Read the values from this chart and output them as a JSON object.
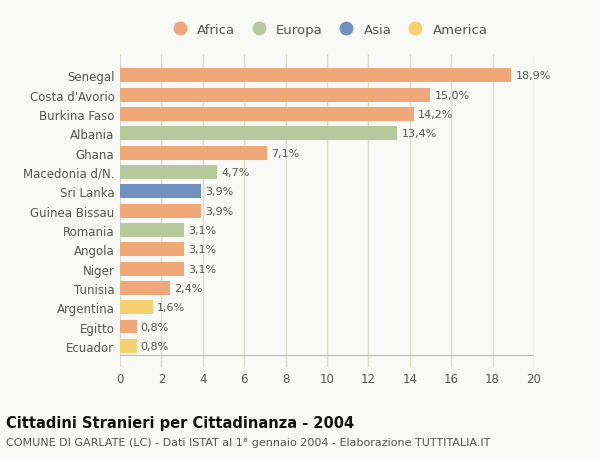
{
  "categories": [
    "Senegal",
    "Costa d'Avorio",
    "Burkina Faso",
    "Albania",
    "Ghana",
    "Macedonia d/N.",
    "Sri Lanka",
    "Guinea Bissau",
    "Romania",
    "Angola",
    "Niger",
    "Tunisia",
    "Argentina",
    "Egitto",
    "Ecuador"
  ],
  "values": [
    18.9,
    15.0,
    14.2,
    13.4,
    7.1,
    4.7,
    3.9,
    3.9,
    3.1,
    3.1,
    3.1,
    2.4,
    1.6,
    0.8,
    0.8
  ],
  "labels": [
    "18,9%",
    "15,0%",
    "14,2%",
    "13,4%",
    "7,1%",
    "4,7%",
    "3,9%",
    "3,9%",
    "3,1%",
    "3,1%",
    "3,1%",
    "2,4%",
    "1,6%",
    "0,8%",
    "0,8%"
  ],
  "continents": [
    "Africa",
    "Africa",
    "Africa",
    "Europa",
    "Africa",
    "Europa",
    "Asia",
    "Africa",
    "Europa",
    "Africa",
    "Africa",
    "Africa",
    "America",
    "Africa",
    "America"
  ],
  "colors": {
    "Africa": "#F0A878",
    "Europa": "#B5C99A",
    "Asia": "#7090C0",
    "America": "#F5D06E"
  },
  "legend_order": [
    "Africa",
    "Europa",
    "Asia",
    "America"
  ],
  "legend_colors": [
    "#F0A878",
    "#B5C99A",
    "#7090C0",
    "#F5D06E"
  ],
  "xlim": [
    0,
    20
  ],
  "xticks": [
    0,
    2,
    4,
    6,
    8,
    10,
    12,
    14,
    16,
    18,
    20
  ],
  "title": "Cittadini Stranieri per Cittadinanza - 2004",
  "subtitle": "COMUNE DI GARLATE (LC) - Dati ISTAT al 1° gennaio 2004 - Elaborazione TUTTITALIA.IT",
  "bg_color": "#f9f9f7",
  "plot_bg_color": "#f9f9f7",
  "bar_height": 0.72,
  "title_fontsize": 10.5,
  "subtitle_fontsize": 8,
  "label_fontsize": 8,
  "tick_fontsize": 8.5,
  "legend_fontsize": 9.5,
  "grid_color": "#ddddcc"
}
